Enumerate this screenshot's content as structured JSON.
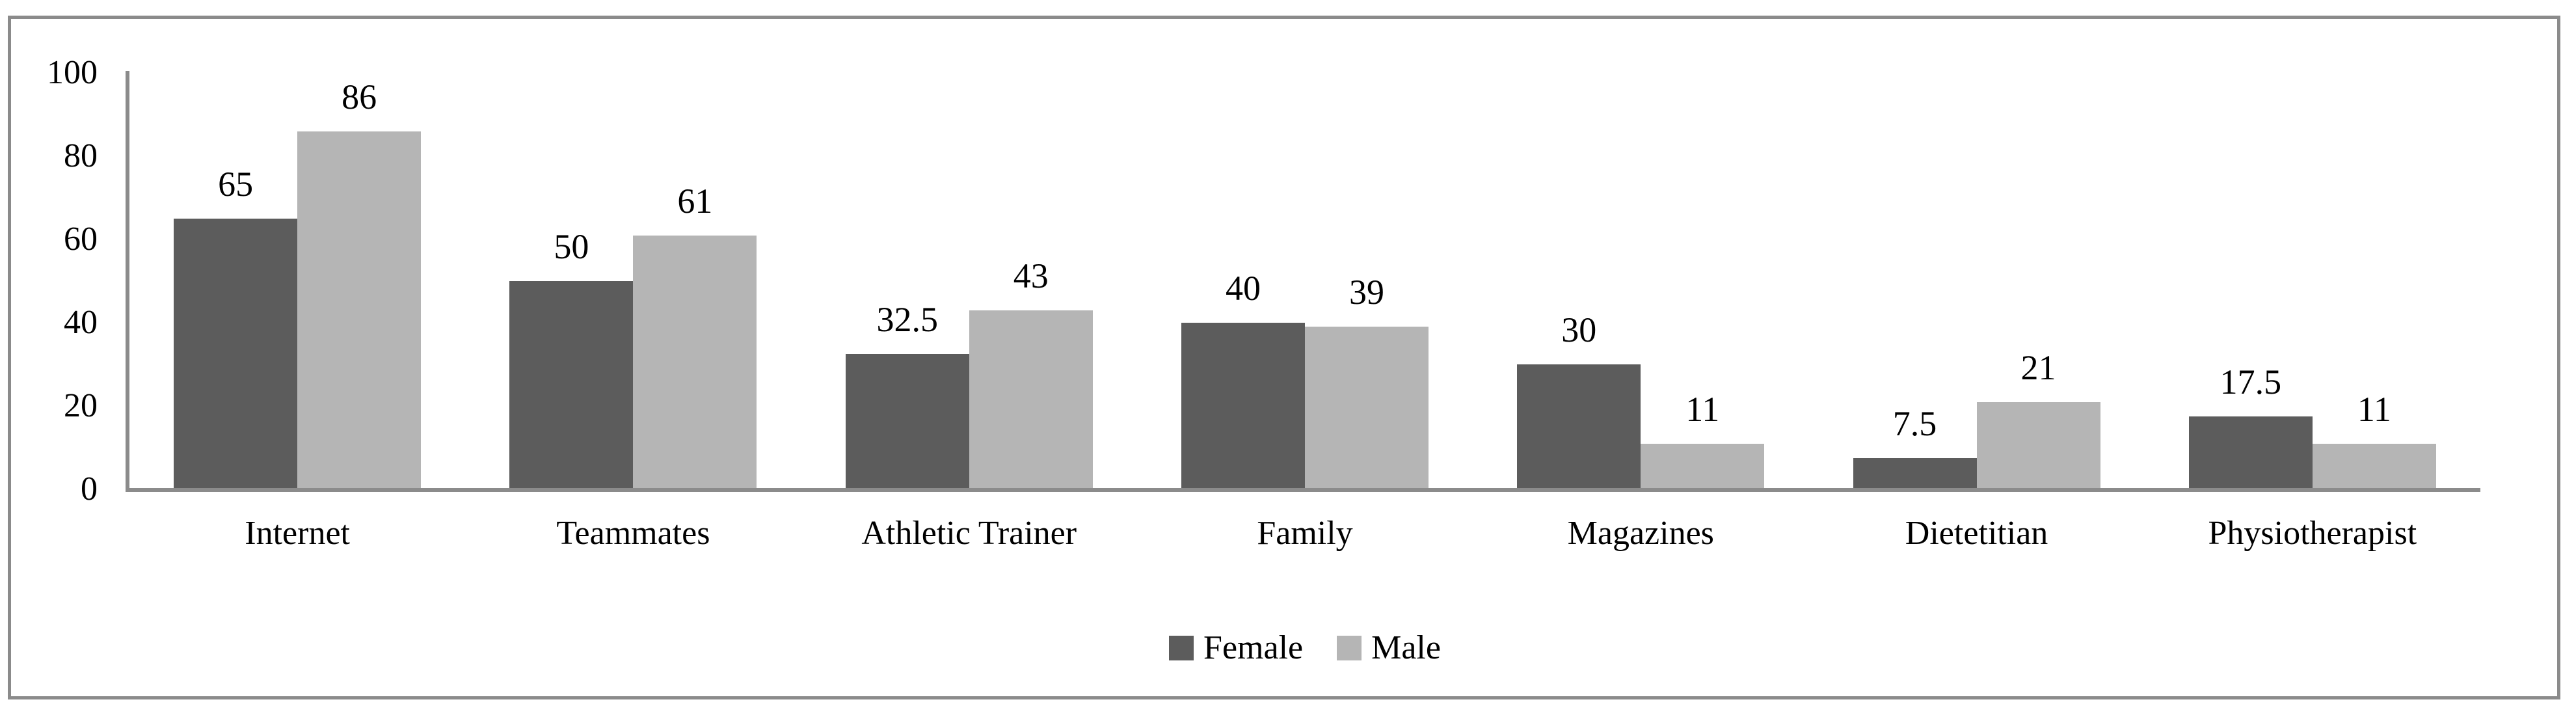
{
  "figure": {
    "background": "#ffffff",
    "border_color": "#8b8b8b",
    "axis_color": "#8b8b8b",
    "text_color": "#000000"
  },
  "chart_data": {
    "type": "bar",
    "title": "",
    "xlabel": "",
    "ylabel": "",
    "categories": [
      "Internet",
      "Teammates",
      "Athletic Trainer",
      "Family",
      "Magazines",
      "Dietetitian",
      "Physiotherapist"
    ],
    "series": [
      {
        "name": "Female",
        "color": "#5c5c5c",
        "values": [
          65,
          50,
          32.5,
          40,
          30,
          7.5,
          17.5
        ]
      },
      {
        "name": "Male",
        "color": "#b5b5b5",
        "values": [
          86,
          61,
          43,
          39,
          11,
          21,
          11
        ]
      }
    ],
    "ylim": [
      0,
      100
    ],
    "yticks": [
      0,
      20,
      40,
      60,
      80,
      100
    ],
    "grid": false,
    "legend_position": "bottom-center",
    "value_labels": "outside-end"
  }
}
